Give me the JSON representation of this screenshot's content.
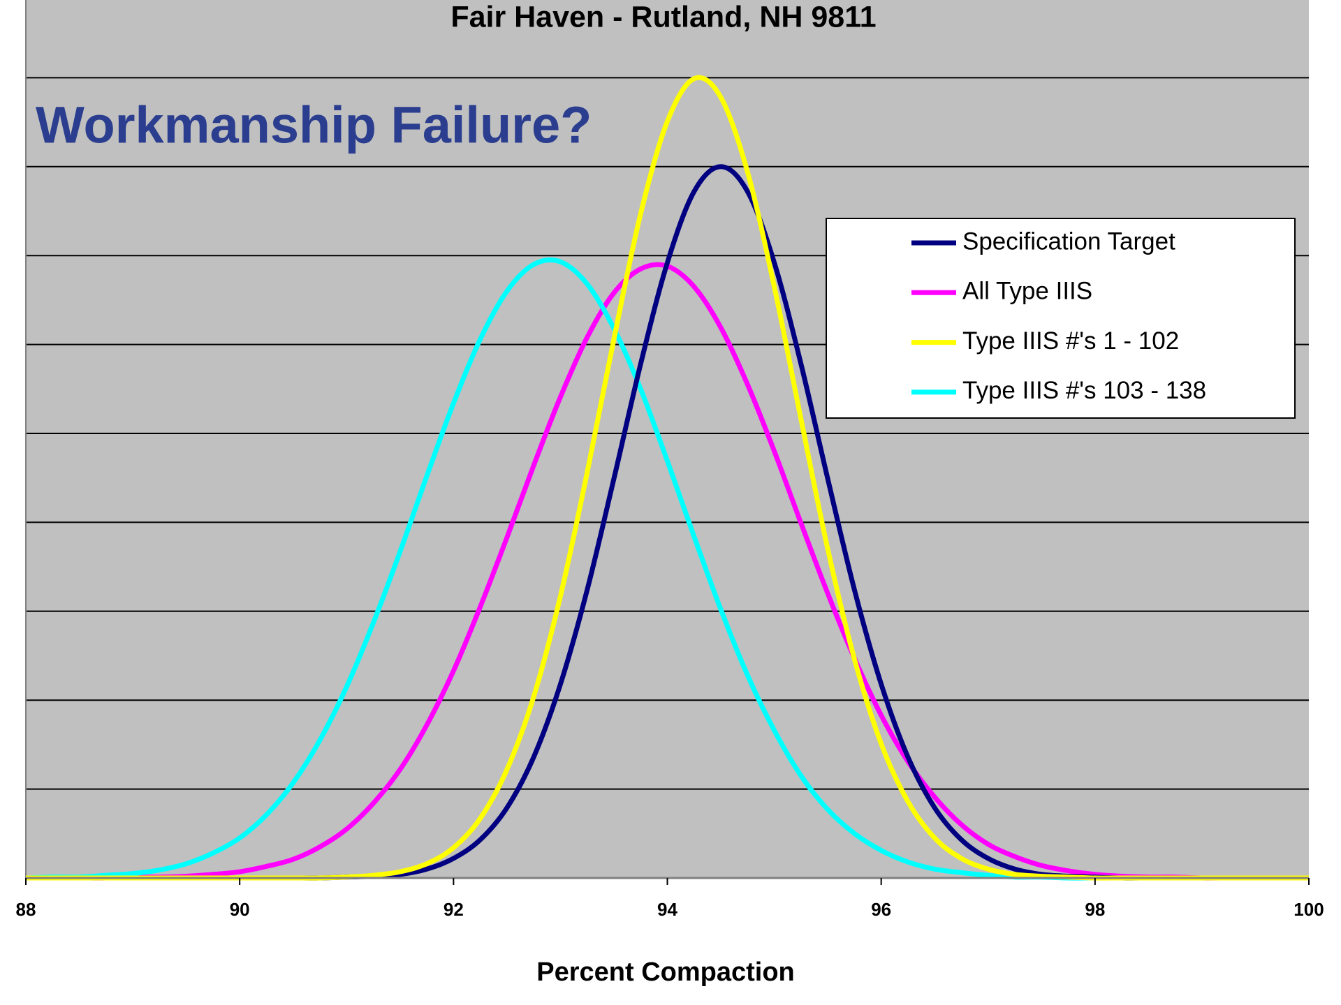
{
  "chart_data": {
    "type": "line",
    "title": "Fair Haven - Rutland, NH 9811",
    "annotation": "Workmanship Failure?",
    "x_label": "Percent Compaction",
    "x": [
      88,
      88.25,
      88.5,
      88.75,
      89,
      89.25,
      89.5,
      89.75,
      90,
      90.25,
      90.5,
      90.75,
      91,
      91.25,
      91.5,
      91.75,
      92,
      92.25,
      92.5,
      92.75,
      93,
      93.25,
      93.5,
      93.75,
      94,
      94.25,
      94.5,
      94.75,
      95,
      95.25,
      95.5,
      95.75,
      96,
      96.25,
      96.5,
      96.75,
      97,
      97.25,
      97.5,
      97.75,
      98,
      98.25,
      98.5,
      98.75,
      99,
      99.25,
      99.5,
      99.75,
      100
    ],
    "series": [
      {
        "name": "Specification Target",
        "color": "#000080",
        "values": [
          0,
          0,
          0,
          0,
          0,
          0,
          0,
          0,
          0,
          0,
          0,
          0,
          0.01,
          0.02,
          0.04,
          0.1,
          0.22,
          0.43,
          0.79,
          1.36,
          2.18,
          3.24,
          4.49,
          5.78,
          6.92,
          7.72,
          8.0,
          7.72,
          6.92,
          5.78,
          4.49,
          3.24,
          2.18,
          1.36,
          0.79,
          0.43,
          0.22,
          0.1,
          0.04,
          0.02,
          0.01,
          0,
          0,
          0,
          0,
          0,
          0,
          0,
          0
        ]
      },
      {
        "name": "All Type IIIS",
        "color": "#ff00ff",
        "values": [
          0,
          0,
          0,
          0,
          0.01,
          0.01,
          0.02,
          0.04,
          0.07,
          0.13,
          0.21,
          0.35,
          0.55,
          0.84,
          1.22,
          1.72,
          2.33,
          3.05,
          3.83,
          4.64,
          5.41,
          6.08,
          6.58,
          6.85,
          6.88,
          6.65,
          6.19,
          5.55,
          4.8,
          3.99,
          3.2,
          2.47,
          1.83,
          1.31,
          0.91,
          0.6,
          0.38,
          0.24,
          0.14,
          0.08,
          0.04,
          0.02,
          0.01,
          0.01,
          0,
          0,
          0,
          0,
          0
        ]
      },
      {
        "name": "Type IIIS #'s 1 - 102",
        "color": "#ffff00",
        "values": [
          0,
          0,
          0,
          0,
          0,
          0,
          0,
          0,
          0,
          0,
          0,
          0,
          0.01,
          0.03,
          0.07,
          0.16,
          0.34,
          0.67,
          1.22,
          2.04,
          3.17,
          4.56,
          6.06,
          7.47,
          8.51,
          8.99,
          8.78,
          7.94,
          6.65,
          5.16,
          3.7,
          2.46,
          1.51,
          0.86,
          0.45,
          0.22,
          0.1,
          0.04,
          0.02,
          0.01,
          0,
          0,
          0,
          0,
          0,
          0,
          0,
          0,
          0
        ]
      },
      {
        "name": "Type IIIS #'s 103 - 138",
        "color": "#00ffff",
        "values": [
          0,
          0.01,
          0.01,
          0.03,
          0.05,
          0.09,
          0.16,
          0.28,
          0.45,
          0.71,
          1.07,
          1.55,
          2.15,
          2.87,
          3.67,
          4.52,
          5.34,
          6.06,
          6.6,
          6.9,
          6.93,
          6.68,
          6.18,
          5.5,
          4.69,
          3.84,
          3.02,
          2.28,
          1.66,
          1.15,
          0.77,
          0.5,
          0.31,
          0.18,
          0.1,
          0.06,
          0.03,
          0.01,
          0.01,
          0,
          0,
          0,
          0,
          0,
          0,
          0,
          0,
          0,
          0
        ]
      }
    ],
    "xlim": [
      88,
      100
    ],
    "xticks": [
      88,
      90,
      92,
      94,
      96,
      98,
      100
    ],
    "ylim": [
      0,
      10
    ],
    "yticks": [
      0,
      1,
      2,
      3,
      4,
      5,
      6,
      7,
      8,
      9
    ],
    "ytick_labels": false,
    "grid": true,
    "legend": "upper right",
    "plot_background": "#c0c0c0"
  }
}
